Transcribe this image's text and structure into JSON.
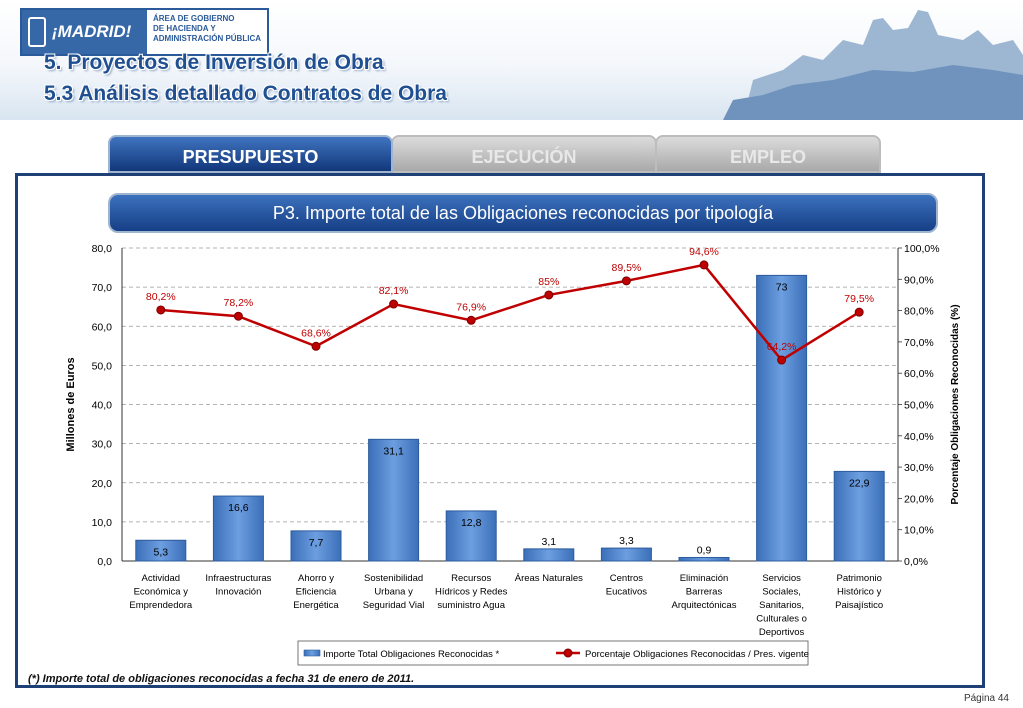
{
  "header": {
    "logo_word": "¡MADRID!",
    "logo_lines": [
      "ÁREA DE GOBIERNO",
      "DE HACIENDA Y",
      "ADMINISTRACIÓN PÚBLICA"
    ],
    "title_line1": "5. Proyectos de Inversión de Obra",
    "title_line2": "5.3 Análisis detallado Contratos de Obra"
  },
  "tabs": [
    {
      "label": "PRESUPUESTO",
      "active": true
    },
    {
      "label": "EJECUCIÓN",
      "active": false
    },
    {
      "label": "EMPLEO",
      "active": false
    }
  ],
  "chart_title": "P3. Importe total de las Obligaciones reconocidas por tipología",
  "chart_data": {
    "type": "bar",
    "categories": [
      [
        "Actividad",
        "Económica y",
        "Emprendedora"
      ],
      [
        "Infraestructuras",
        "Innovación"
      ],
      [
        "Ahorro y",
        "Eficiencia",
        "Energética"
      ],
      [
        "Sostenibilidad",
        "Urbana y",
        "Seguridad Vial"
      ],
      [
        "Recursos",
        "Hídricos y Redes",
        "suministro Agua"
      ],
      [
        "Áreas Naturales"
      ],
      [
        "Centros",
        "Eucativos"
      ],
      [
        "Eliminación",
        "Barreras",
        "Arquitectónicas"
      ],
      [
        "Servicios",
        "Sociales,",
        "Sanitarios,",
        "Culturales o",
        "Deportivos"
      ],
      [
        "Patrimonio",
        "Histórico y",
        "Paisajístico"
      ]
    ],
    "series": [
      {
        "name": "Importe Total Obligaciones Reconocidas *",
        "type": "bar",
        "axis": "left",
        "color": "#5b8fd6",
        "values": [
          5.3,
          16.6,
          7.7,
          31.1,
          12.8,
          3.1,
          3.3,
          0.9,
          73,
          22.9
        ],
        "labels": [
          "5,3",
          "16,6",
          "7,7",
          "31,1",
          "12,8",
          "3,1",
          "3,3",
          "0,9",
          "73",
          "22,9"
        ]
      },
      {
        "name": "Porcentaje Obligaciones Reconocidas / Pres. vigente",
        "type": "line",
        "axis": "right",
        "color": "#c00000",
        "values": [
          80.2,
          78.2,
          68.6,
          82.1,
          76.9,
          85,
          89.5,
          94.6,
          64.2,
          79.5
        ],
        "labels": [
          "80,2%",
          "78,2%",
          "68,6%",
          "82,1%",
          "76,9%",
          "85%",
          "89,5%",
          "94,6%",
          "64,2%",
          "79,5%"
        ]
      }
    ],
    "ylabel": "Millones de Euros",
    "ylabel_right": "Porcentaje Obligaciones Reconocidas (%)",
    "ylim": [
      0,
      80
    ],
    "ylim_right": [
      0,
      100
    ],
    "yticks": [
      "0,0",
      "10,0",
      "20,0",
      "30,0",
      "40,0",
      "50,0",
      "60,0",
      "70,0",
      "80,0"
    ],
    "yticks_right": [
      "0,0%",
      "10,0%",
      "20,0%",
      "30,0%",
      "40,0%",
      "50,0%",
      "60,0%",
      "70,0%",
      "80,0%",
      "90,0%",
      "100,0%"
    ],
    "grid": true,
    "legend_position": "bottom"
  },
  "footnote": "(*) Importe total de obligaciones reconocidas a fecha 31 de enero de 2011.",
  "page": "Página 44"
}
